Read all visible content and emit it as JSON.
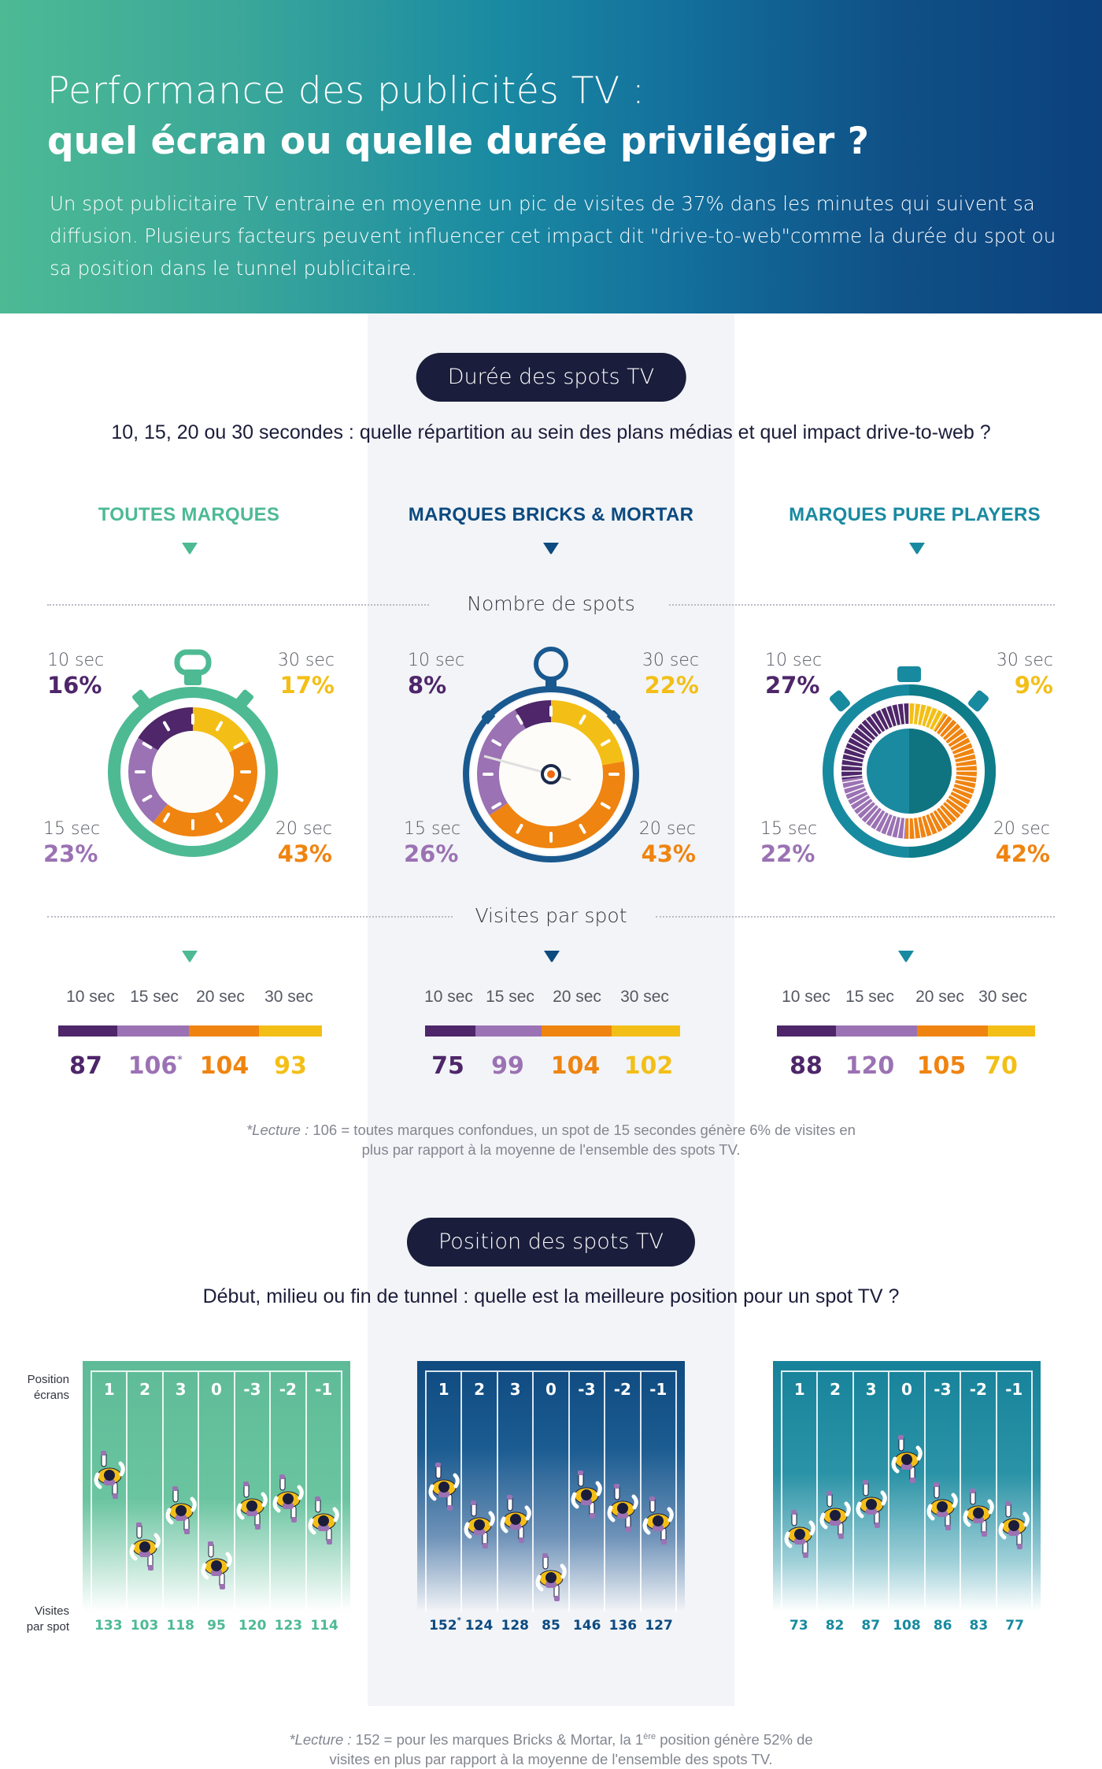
{
  "header": {
    "title_line1": "Performance des publicités TV :",
    "title_line2": "quel écran ou quelle durée privilégier ?",
    "intro": "Un spot publicitaire TV entraine en moyenne un pic de visites de 37% dans les minutes qui suivent sa diffusion. Plusieurs facteurs peuvent influencer cet impact dit \"drive-to-web\"comme la durée du spot ou sa position dans le tunnel publicitaire."
  },
  "colors": {
    "sec10": "#4e2669",
    "sec15": "#9b72b3",
    "sec20": "#ef8410",
    "sec30": "#f3bf17",
    "toutes": "#4dba94",
    "bricks": "#0c4a80",
    "pure": "#188aa0"
  },
  "duration": {
    "pill": "Durée des spots TV",
    "question": "10, 15, 20 ou 30 secondes : quelle répartition au sein des plans médias et quel impact drive-to-web ?",
    "nombre_label": "Nombre de spots",
    "visites_label": "Visites par spot",
    "groups": [
      {
        "name": "TOUTES MARQUES",
        "shares": [
          {
            "label": "10 sec",
            "value": "16%"
          },
          {
            "label": "15 sec",
            "value": "23%"
          },
          {
            "label": "20 sec",
            "value": "43%"
          },
          {
            "label": "30 sec",
            "value": "17%"
          }
        ],
        "visits_labels": [
          "10 sec",
          "15 sec",
          "20 sec",
          "30 sec"
        ],
        "visits": [
          "87",
          "106",
          "104",
          "93"
        ],
        "visits_note_index": 1
      },
      {
        "name": "MARQUES BRICKS & MORTAR",
        "shares": [
          {
            "label": "10 sec",
            "value": "8%"
          },
          {
            "label": "15 sec",
            "value": "26%"
          },
          {
            "label": "20 sec",
            "value": "43%"
          },
          {
            "label": "30 sec",
            "value": "22%"
          }
        ],
        "visits_labels": [
          "10 sec",
          "15 sec",
          "20 sec",
          "30 sec"
        ],
        "visits": [
          "75",
          "99",
          "104",
          "102"
        ]
      },
      {
        "name": "MARQUES PURE PLAYERS",
        "shares": [
          {
            "label": "10 sec",
            "value": "27%"
          },
          {
            "label": "15 sec",
            "value": "22%"
          },
          {
            "label": "20 sec",
            "value": "42%"
          },
          {
            "label": "30 sec",
            "value": "9%"
          }
        ],
        "visits_labels": [
          "10 sec",
          "15 sec",
          "20 sec",
          "30 sec"
        ],
        "visits": [
          "88",
          "120",
          "105",
          "70"
        ]
      }
    ],
    "footnote_lead": "*Lecture :",
    "footnote_text": " 106 = toutes marques confondues, un spot de 15 secondes génère 6% de visites en",
    "footnote_text2": "plus par rapport à la moyenne de l'ensemble des spots TV."
  },
  "position": {
    "pill": "Position des spots TV",
    "question": "Début, milieu ou fin de tunnel : quelle est la meilleure position pour un spot TV ?",
    "row_label_positions": "Position écrans",
    "row_label_visits": "Visites par spot",
    "positions": [
      "1",
      "2",
      "3",
      "0",
      "-3",
      "-2",
      "-1"
    ],
    "groups": [
      {
        "name": "Toutes marques",
        "visits": [
          "133",
          "103",
          "118",
          "95",
          "120",
          "123",
          "114"
        ]
      },
      {
        "name": "Marques Bricks & Mortar",
        "visits": [
          "152",
          "124",
          "128",
          "85",
          "146",
          "136",
          "127"
        ],
        "note_index": 0
      },
      {
        "name": "Marques Pure Players",
        "visits": [
          "73",
          "82",
          "87",
          "108",
          "86",
          "83",
          "77"
        ]
      }
    ],
    "footnote_lead": "*Lecture :",
    "footnote_text": " 152 = pour les marques Bricks & Mortar, la 1",
    "footnote_sup": "ère",
    "footnote_text_b": " position génère 52% de",
    "footnote_text2": "visites en plus par rapport à la moyenne de l'ensemble des spots TV."
  },
  "chart_data": [
    {
      "type": "pie",
      "title": "Nombre de spots — Toutes marques",
      "categories": [
        "10 sec",
        "15 sec",
        "20 sec",
        "30 sec"
      ],
      "values": [
        16,
        23,
        43,
        17
      ]
    },
    {
      "type": "pie",
      "title": "Nombre de spots — Marques Bricks & Mortar",
      "categories": [
        "10 sec",
        "15 sec",
        "20 sec",
        "30 sec"
      ],
      "values": [
        8,
        26,
        43,
        22
      ]
    },
    {
      "type": "pie",
      "title": "Nombre de spots — Marques Pure Players",
      "categories": [
        "10 sec",
        "15 sec",
        "20 sec",
        "30 sec"
      ],
      "values": [
        27,
        22,
        42,
        9
      ]
    },
    {
      "type": "bar",
      "title": "Visites par spot (indice) par durée",
      "categories": [
        "10 sec",
        "15 sec",
        "20 sec",
        "30 sec"
      ],
      "series": [
        {
          "name": "Toutes marques",
          "values": [
            87,
            106,
            104,
            93
          ]
        },
        {
          "name": "Marques Bricks & Mortar",
          "values": [
            75,
            99,
            104,
            102
          ]
        },
        {
          "name": "Marques Pure Players",
          "values": [
            88,
            120,
            105,
            70
          ]
        }
      ]
    },
    {
      "type": "bar",
      "title": "Visites par spot (indice) par position écran",
      "xlabel": "Position écrans",
      "ylabel": "Visites par spot",
      "categories": [
        "1",
        "2",
        "3",
        "0",
        "-3",
        "-2",
        "-1"
      ],
      "series": [
        {
          "name": "Toutes marques",
          "values": [
            133,
            103,
            118,
            95,
            120,
            123,
            114
          ]
        },
        {
          "name": "Marques Bricks & Mortar",
          "values": [
            152,
            124,
            128,
            85,
            146,
            136,
            127
          ]
        },
        {
          "name": "Marques Pure Players",
          "values": [
            73,
            82,
            87,
            108,
            86,
            83,
            77
          ]
        }
      ]
    }
  ]
}
